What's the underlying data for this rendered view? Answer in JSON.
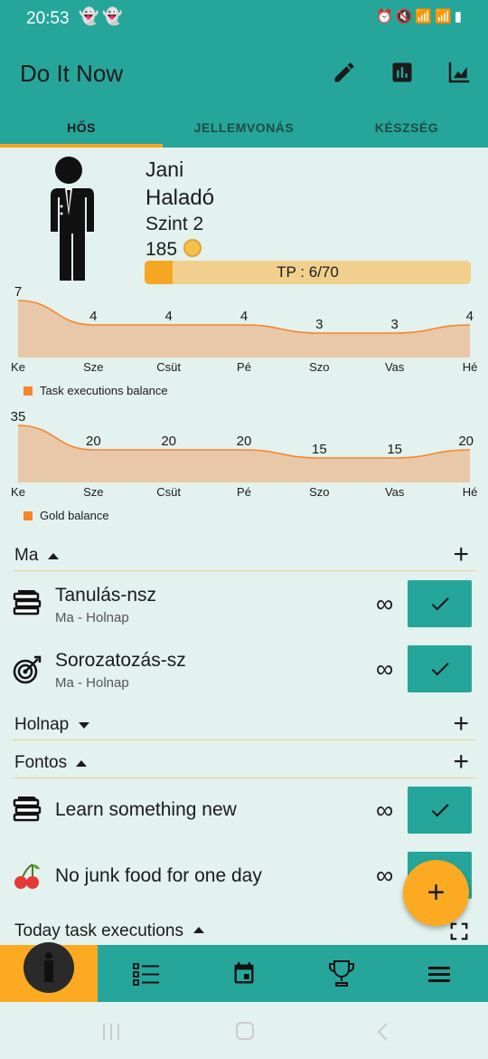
{
  "status_bar": {
    "time": "20:53",
    "left_icons": "snapchat-icons",
    "right_icons": "alarm,mute,wifi,signal,battery"
  },
  "app_bar": {
    "title": "Do It Now",
    "actions": [
      "edit-icon",
      "bar-chart-icon",
      "line-chart-icon"
    ]
  },
  "tabs": [
    {
      "label": "HŐS",
      "active": true
    },
    {
      "label": "JELLEMVONÁS",
      "active": false
    },
    {
      "label": "KÉSZSÉG",
      "active": false
    }
  ],
  "profile": {
    "name": "Jani",
    "rank": "Haladó",
    "level": "Szint 2",
    "gold": "185",
    "tp_text": "TP : 6/70",
    "tp_progress": 0.0857
  },
  "chart_data": [
    {
      "type": "area",
      "categories": [
        "Ke",
        "Sze",
        "Csüt",
        "Pé",
        "Szo",
        "Vas",
        "Hé"
      ],
      "series": [
        {
          "name": "Task executions balance",
          "values": [
            7,
            4,
            4,
            4,
            3,
            3,
            4
          ]
        }
      ],
      "grid": false,
      "legend": "bottom-left",
      "color": "#f5862a"
    },
    {
      "type": "area",
      "categories": [
        "Ke",
        "Sze",
        "Csüt",
        "Pé",
        "Szo",
        "Vas",
        "Hé"
      ],
      "series": [
        {
          "name": "Gold balance",
          "values": [
            35,
            20,
            20,
            20,
            15,
            15,
            20
          ]
        }
      ],
      "grid": false,
      "legend": "bottom-left",
      "color": "#f5862a"
    }
  ],
  "sections": {
    "today": {
      "label": "Ma",
      "expanded": true
    },
    "tomorrow": {
      "label": "Holnap",
      "expanded": false
    },
    "important": {
      "label": "Fontos",
      "expanded": true
    },
    "executions": {
      "label": "Today task executions",
      "expanded": true
    }
  },
  "tasks_today": [
    {
      "name": "Tanulás-nsz",
      "sub": "Ma - Holnap",
      "icon": "books-icon",
      "repeat": "∞"
    },
    {
      "name": "Sorozatozás-sz",
      "sub": "Ma - Holnap",
      "icon": "target-icon",
      "repeat": "∞"
    }
  ],
  "tasks_important": [
    {
      "name": "Learn something new",
      "icon": "books-icon",
      "repeat": "∞"
    },
    {
      "name": "No junk food for one day",
      "icon": "cherry-icon",
      "repeat": "∞"
    }
  ],
  "fab": {
    "label": "+"
  },
  "bottom_nav": [
    "hero-icon",
    "list-icon",
    "calendar-icon",
    "trophy-icon",
    "menu-icon"
  ],
  "colors": {
    "primary": "#26a69a",
    "accent": "#fbaa21",
    "background": "#e3f1ef",
    "area_fill": "#e8c8a8",
    "line": "#f5862a"
  }
}
